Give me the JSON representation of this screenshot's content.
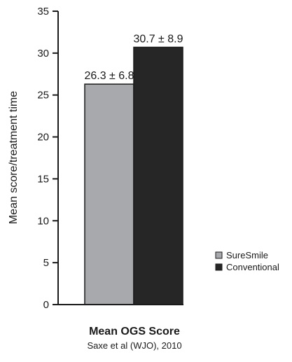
{
  "chart_data": {
    "type": "bar",
    "categories": [
      "SureSmile",
      "Conventional"
    ],
    "values": [
      26.3,
      30.7
    ],
    "value_labels": [
      "26.3 ± 6.8",
      "30.7 ± 8.9"
    ],
    "ylabel": "Mean score/treatment time",
    "ylim": [
      0,
      35
    ],
    "yticks": [
      0,
      5,
      10,
      15,
      20,
      25,
      30,
      35
    ],
    "grid": false,
    "legend": {
      "placement": "right",
      "entries": [
        "SureSmile",
        "Conventional"
      ]
    },
    "colors": [
      "#a7a9ac",
      "#262626"
    ],
    "title": "Mean OGS Score",
    "subtitle": "Saxe et al (WJO), 2010"
  }
}
